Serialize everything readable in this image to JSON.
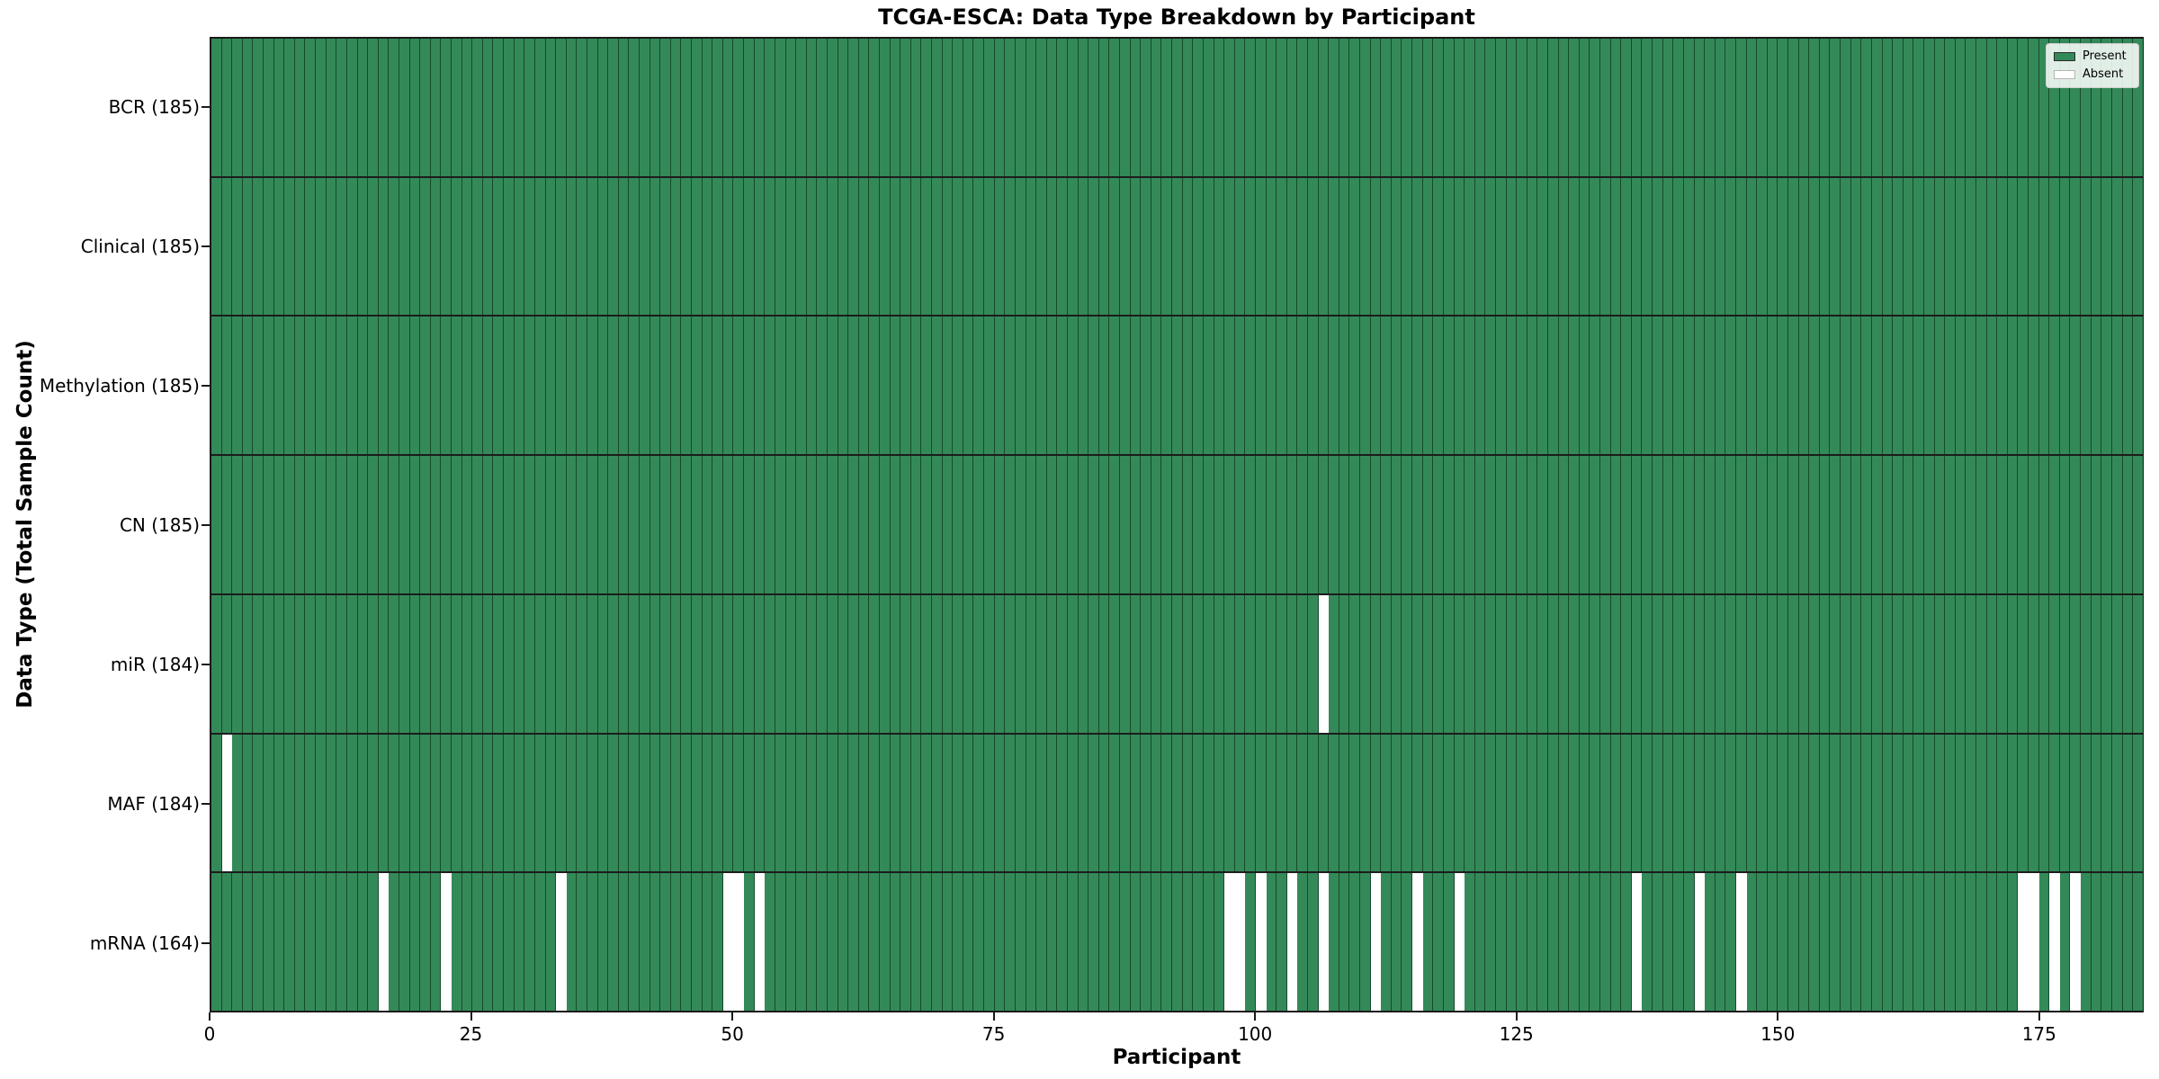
{
  "title": "TCGA-ESCA: Data Type Breakdown by Participant",
  "legend": {
    "present_label": "Present",
    "absent_label": "Absent"
  },
  "chart_data": {
    "type": "heatmap",
    "title": "TCGA-ESCA: Data Type Breakdown by Participant",
    "xlabel": "Participant",
    "ylabel": "Data Type (Total Sample Count)",
    "n_participants": 185,
    "x_ticks": [
      0,
      25,
      50,
      75,
      100,
      125,
      150,
      175
    ],
    "xlim": [
      0,
      185
    ],
    "grid": false,
    "legend_position": "upper right",
    "colors": {
      "present": "#338a58",
      "absent": "#ffffff",
      "cell_edge": "rgba(5,35,18,0.62)",
      "row_separator": "#1c1c1c"
    },
    "legend_entries": [
      {
        "label": "Present",
        "color": "#338a58"
      },
      {
        "label": "Absent",
        "color": "#ffffff"
      }
    ],
    "rows": [
      {
        "label": "BCR (185)",
        "data_type": "BCR",
        "present_count": 185,
        "absent_participants": []
      },
      {
        "label": "Clinical (185)",
        "data_type": "Clinical",
        "present_count": 185,
        "absent_participants": []
      },
      {
        "label": "Methylation (185)",
        "data_type": "Methylation",
        "present_count": 185,
        "absent_participants": []
      },
      {
        "label": "CN (185)",
        "data_type": "CN",
        "present_count": 185,
        "absent_participants": []
      },
      {
        "label": "miR (184)",
        "data_type": "miR",
        "present_count": 184,
        "absent_participants": [
          106
        ]
      },
      {
        "label": "MAF (184)",
        "data_type": "MAF",
        "present_count": 184,
        "absent_participants": [
          1
        ]
      },
      {
        "label": "mRNA (164)",
        "data_type": "mRNA",
        "present_count": 164,
        "absent_participants": [
          16,
          22,
          33,
          49,
          50,
          52,
          97,
          98,
          100,
          103,
          106,
          111,
          115,
          119,
          136,
          142,
          146,
          173,
          174,
          176,
          178
        ]
      }
    ]
  }
}
